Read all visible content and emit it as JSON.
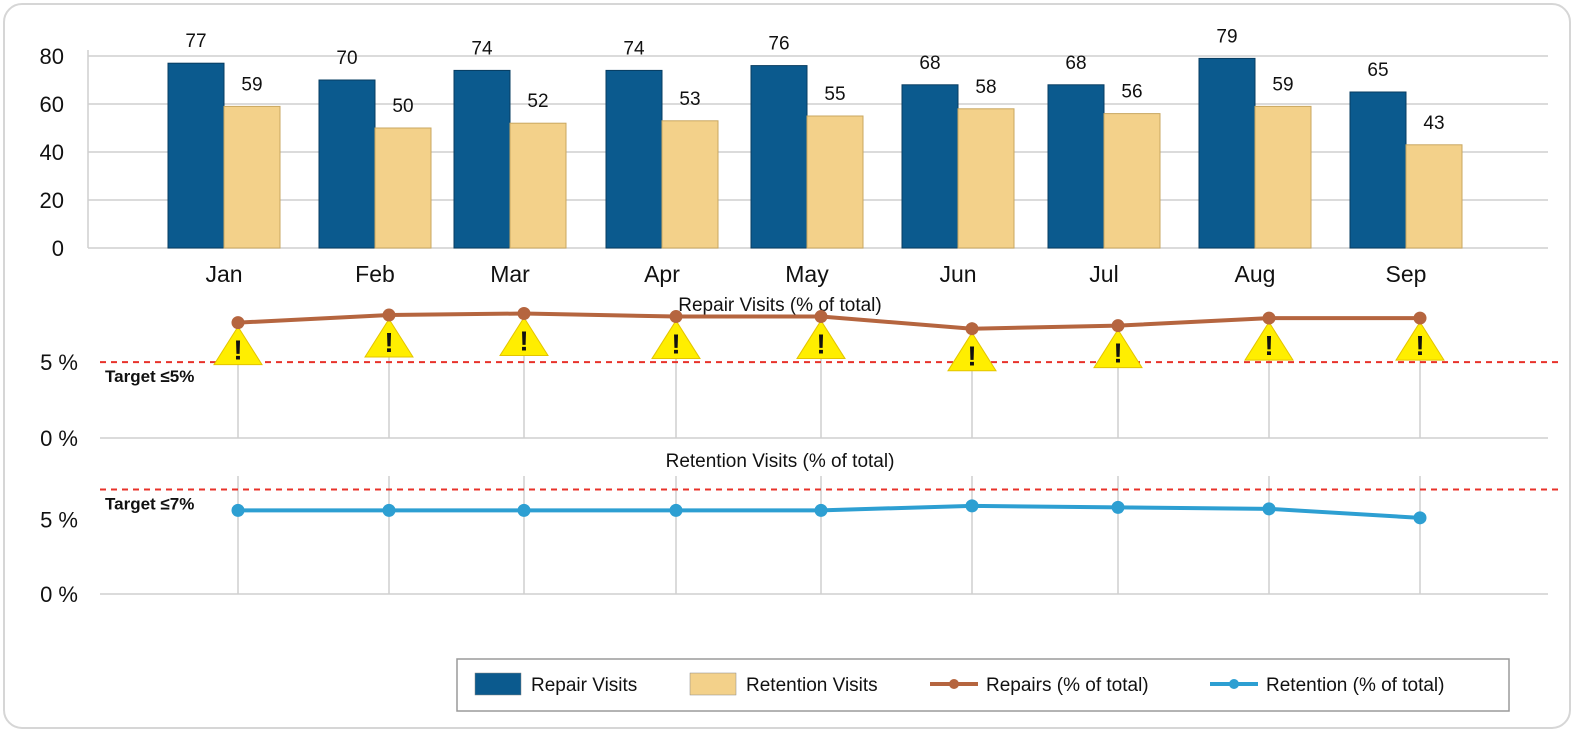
{
  "colors": {
    "repair_bar": "#0b5a8e",
    "retention_bar": "#f3d18a",
    "repair_line": "#b5653f",
    "retention_line": "#2d9fd2",
    "target": "#e8322a",
    "warning": "#ffee00",
    "grid": "#cfcfcf"
  },
  "chart_data": [
    {
      "type": "bar",
      "title": "",
      "categories": [
        "Jan",
        "Feb",
        "Mar",
        "Apr",
        "May",
        "Jun",
        "Jul",
        "Aug",
        "Sep"
      ],
      "series": [
        {
          "name": "Repair Visits",
          "values": [
            77,
            70,
            74,
            74,
            76,
            68,
            68,
            79,
            65
          ]
        },
        {
          "name": "Retention Visits",
          "values": [
            59,
            50,
            52,
            53,
            55,
            58,
            56,
            59,
            43
          ]
        }
      ],
      "ylim": [
        0,
        80
      ],
      "yticks": [
        "0",
        "20",
        "40",
        "60",
        "80"
      ],
      "ytick_values": [
        0,
        20,
        40,
        60,
        80
      ],
      "grid": true
    },
    {
      "type": "line",
      "title": "Repair Visits (% of total)",
      "categories": [
        "Jan",
        "Feb",
        "Mar",
        "Apr",
        "May",
        "Jun",
        "Jul",
        "Aug",
        "Sep"
      ],
      "series": [
        {
          "name": "Repairs (% of total)",
          "values": [
            7.6,
            8.1,
            8.2,
            8.0,
            8.0,
            7.2,
            7.4,
            7.9,
            7.9
          ]
        }
      ],
      "target_value": 5,
      "target_label": "Target ≤5%",
      "warning_marker": "!",
      "ylim": [
        0,
        8.3
      ],
      "yticks": [
        "0 %",
        "5 %"
      ],
      "ytick_values": [
        0,
        5
      ]
    },
    {
      "type": "line",
      "title": "Retention Visits (% of total)",
      "categories": [
        "Jan",
        "Feb",
        "Mar",
        "Apr",
        "May",
        "Jun",
        "Jul",
        "Aug",
        "Sep"
      ],
      "series": [
        {
          "name": "Retention (% of total)",
          "values": [
            5.6,
            5.6,
            5.6,
            5.6,
            5.6,
            5.9,
            5.8,
            5.7,
            5.1
          ]
        }
      ],
      "target_value": 7,
      "target_label": "Target ≤7%",
      "ylim": [
        0,
        7.9
      ],
      "yticks": [
        "0 %",
        "5 %"
      ],
      "ytick_values": [
        0,
        5
      ]
    }
  ],
  "legend": {
    "items": [
      {
        "label": "Repair Visits",
        "kind": "bar",
        "color_key": "repair_bar"
      },
      {
        "label": "Retention Visits",
        "kind": "bar",
        "color_key": "retention_bar"
      },
      {
        "label": "Repairs (% of total)",
        "kind": "line",
        "color_key": "repair_line"
      },
      {
        "label": "Retention (% of total)",
        "kind": "line",
        "color_key": "retention_line"
      }
    ]
  }
}
